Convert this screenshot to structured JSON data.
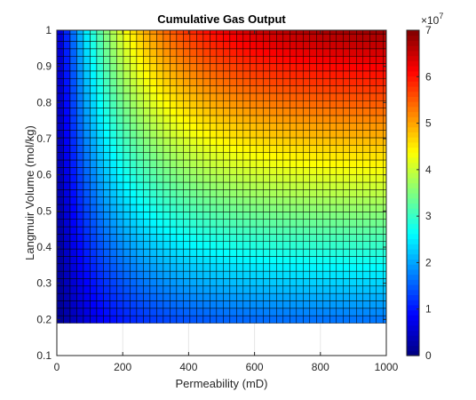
{
  "chart_data": {
    "type": "heatmap",
    "title": "Cumulative Gas Output",
    "xlabel": "Permeability (mD)",
    "ylabel": "Langmuir Volume (mol/kg)",
    "xlim": [
      0,
      1000
    ],
    "ylim": [
      0.1,
      1
    ],
    "x_ticks": [
      0,
      200,
      400,
      600,
      800,
      1000
    ],
    "x_tick_labels": [
      "0",
      "200",
      "400",
      "600",
      "800",
      "1000"
    ],
    "y_ticks": [
      0.1,
      0.2,
      0.3,
      0.4,
      0.5,
      0.6,
      0.7,
      0.8,
      0.9,
      1
    ],
    "y_tick_labels": [
      "0.1",
      "0.2",
      "0.3",
      "0.4",
      "0.5",
      "0.6",
      "0.7",
      "0.8",
      "0.9",
      "1"
    ],
    "grid": true,
    "colormap": "jet",
    "x_range": [
      10,
      1000
    ],
    "y_range": [
      0.2,
      1
    ],
    "columns": 50,
    "rows": 40,
    "corner_values_1e7": {
      "x10_y0.2": 0.15,
      "x1000_y0.2": 1.7,
      "x10_y1": 0.6,
      "x1000_y1": 6.8
    },
    "colorbar": {
      "min": 0,
      "max": 7,
      "ticks": [
        0,
        1,
        2,
        3,
        4,
        5,
        6,
        7
      ],
      "tick_labels": [
        "0",
        "1",
        "2",
        "3",
        "4",
        "5",
        "6",
        "7"
      ],
      "multiplier_base": "×10",
      "multiplier_exp": "7"
    }
  }
}
